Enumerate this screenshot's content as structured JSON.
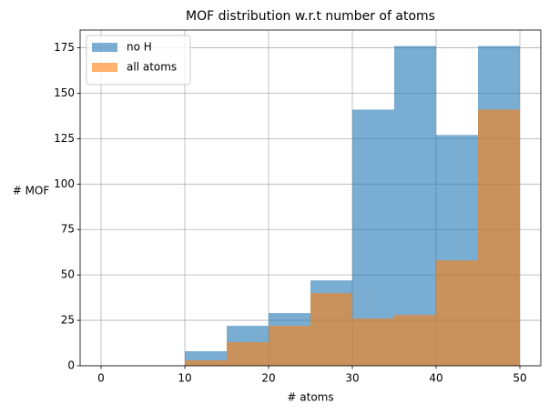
{
  "chart_data": {
    "type": "histogram",
    "title": "MOF distribution w.r.t number of atoms",
    "xlabel": "# atoms",
    "ylabel": "# MOF",
    "bins": [
      0,
      5,
      10,
      15,
      20,
      25,
      30,
      35,
      40,
      45,
      50
    ],
    "series": [
      {
        "name": "no H",
        "color": "#1f77b4",
        "alpha": 0.6,
        "values": [
          0,
          0,
          8,
          22,
          29,
          47,
          141,
          176,
          127,
          176
        ]
      },
      {
        "name": "all atoms",
        "color": "#ff7f0e",
        "alpha": 0.6,
        "values": [
          0,
          0,
          3,
          13,
          22,
          40,
          26,
          28,
          58,
          141
        ]
      }
    ],
    "xlim": [
      -2.5,
      52.5
    ],
    "xticks": [
      0,
      10,
      20,
      30,
      40,
      50
    ],
    "ylim": [
      0,
      184.8
    ],
    "yticks": [
      0,
      25,
      50,
      75,
      100,
      125,
      150,
      175
    ],
    "grid": true,
    "legend": "upper left"
  }
}
